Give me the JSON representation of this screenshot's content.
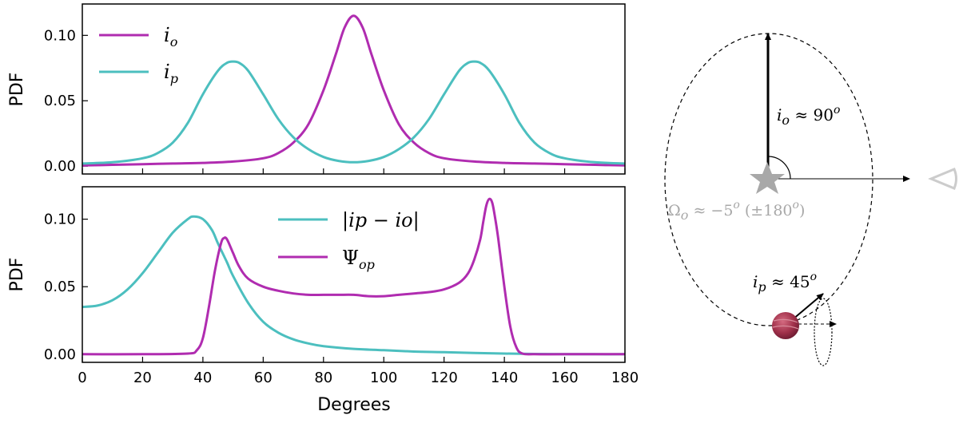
{
  "chart_data": [
    {
      "type": "line",
      "panel": "top",
      "xlabel": "",
      "ylabel": "PDF",
      "xlim": [
        0,
        180
      ],
      "ylim": [
        -0.006,
        0.124
      ],
      "xticks": [
        0,
        20,
        40,
        60,
        80,
        100,
        120,
        140,
        160,
        180
      ],
      "yticks": [
        0.0,
        0.05,
        0.1
      ],
      "ytick_labels": [
        "0.00",
        "0.05",
        "0.10"
      ],
      "legend_position": "top-left",
      "series": [
        {
          "name": "i_o",
          "legend_main": "i",
          "legend_sub": "o",
          "color": "#b02cb0",
          "x": [
            0,
            10,
            20,
            30,
            40,
            50,
            60,
            65,
            70,
            75,
            80,
            84,
            87,
            90,
            93,
            96,
            100,
            105,
            110,
            115,
            120,
            130,
            140,
            150,
            160,
            170,
            180
          ],
          "y": [
            0.0005,
            0.001,
            0.0015,
            0.002,
            0.0025,
            0.0035,
            0.006,
            0.01,
            0.018,
            0.032,
            0.058,
            0.085,
            0.106,
            0.115,
            0.106,
            0.085,
            0.058,
            0.032,
            0.018,
            0.01,
            0.006,
            0.0035,
            0.0025,
            0.002,
            0.0015,
            0.001,
            0.0005
          ]
        },
        {
          "name": "i_p",
          "legend_main": "i",
          "legend_sub": "p",
          "color": "#4cbfbf",
          "x": [
            0,
            10,
            20,
            25,
            30,
            35,
            40,
            45,
            48,
            50,
            52,
            55,
            60,
            65,
            70,
            75,
            80,
            85,
            90,
            95,
            100,
            105,
            110,
            115,
            120,
            125,
            128,
            130,
            132,
            135,
            140,
            145,
            150,
            155,
            160,
            170,
            180
          ],
          "y": [
            0.002,
            0.003,
            0.006,
            0.01,
            0.018,
            0.033,
            0.055,
            0.073,
            0.079,
            0.08,
            0.079,
            0.073,
            0.055,
            0.036,
            0.022,
            0.013,
            0.007,
            0.004,
            0.003,
            0.004,
            0.007,
            0.013,
            0.022,
            0.036,
            0.055,
            0.073,
            0.079,
            0.08,
            0.079,
            0.073,
            0.055,
            0.033,
            0.018,
            0.01,
            0.006,
            0.003,
            0.002
          ]
        }
      ]
    },
    {
      "type": "line",
      "panel": "bottom",
      "xlabel": "Degrees",
      "ylabel": "PDF",
      "xlim": [
        0,
        180
      ],
      "ylim": [
        -0.006,
        0.124
      ],
      "xticks": [
        0,
        20,
        40,
        60,
        80,
        100,
        120,
        140,
        160,
        180
      ],
      "xtick_labels": [
        "0",
        "20",
        "40",
        "60",
        "80",
        "100",
        "120",
        "140",
        "160",
        "180"
      ],
      "yticks": [
        0.0,
        0.05,
        0.1
      ],
      "ytick_labels": [
        "0.00",
        "0.05",
        "0.10"
      ],
      "legend_position": "top-center",
      "series": [
        {
          "name": "|i_p - i_o|",
          "legend_label": "|ip − io|",
          "color": "#4cbfbf",
          "x": [
            0,
            5,
            10,
            15,
            20,
            25,
            30,
            35,
            37,
            40,
            43,
            45,
            48,
            50,
            55,
            60,
            65,
            70,
            75,
            80,
            90,
            100,
            110,
            120,
            130,
            140,
            150,
            160,
            170,
            180
          ],
          "y": [
            0.035,
            0.036,
            0.04,
            0.048,
            0.06,
            0.075,
            0.09,
            0.1,
            0.102,
            0.1,
            0.092,
            0.082,
            0.068,
            0.058,
            0.038,
            0.024,
            0.016,
            0.011,
            0.008,
            0.006,
            0.004,
            0.003,
            0.002,
            0.0015,
            0.001,
            0.0005,
            0.0002,
            0.0001,
            0.0,
            0.0
          ]
        },
        {
          "name": "Psi_op",
          "legend_main": "Ψ",
          "legend_sub": "op",
          "color": "#b02cb0",
          "x": [
            0,
            20,
            35,
            38,
            40,
            42,
            44,
            46,
            47,
            48,
            50,
            52,
            55,
            60,
            65,
            70,
            75,
            80,
            85,
            90,
            95,
            100,
            105,
            110,
            115,
            120,
            125,
            128,
            130,
            132,
            133,
            134,
            135,
            136,
            137,
            138,
            140,
            142,
            144,
            146,
            150,
            160,
            180
          ],
          "y": [
            0.0,
            0.0,
            0.0005,
            0.003,
            0.012,
            0.035,
            0.062,
            0.082,
            0.086,
            0.085,
            0.075,
            0.065,
            0.056,
            0.05,
            0.047,
            0.045,
            0.044,
            0.044,
            0.044,
            0.044,
            0.043,
            0.043,
            0.044,
            0.045,
            0.046,
            0.048,
            0.053,
            0.06,
            0.07,
            0.085,
            0.098,
            0.11,
            0.115,
            0.112,
            0.1,
            0.085,
            0.05,
            0.02,
            0.005,
            0.0005,
            0.0,
            0.0,
            0.0
          ]
        }
      ]
    }
  ],
  "diagram": {
    "io_label_main": "i",
    "io_label_sub": "o",
    "io_label_rest": " ≈ 90",
    "io_label_sup": "o",
    "omega_label_main": "Ω",
    "omega_label_sub": "o",
    "omega_label_rest": " ≈ −5",
    "omega_label_sup": "o",
    "omega_label_paren": " (±180",
    "omega_label_paren_sup": "o",
    "omega_label_close": ")",
    "ip_label_main": "i",
    "ip_label_sub": "p",
    "ip_label_rest": " ≈ 45",
    "ip_label_sup": "o",
    "star_color": "#a8a8a8",
    "planet_color": "#a0304a",
    "orbit_color": "#000000"
  }
}
